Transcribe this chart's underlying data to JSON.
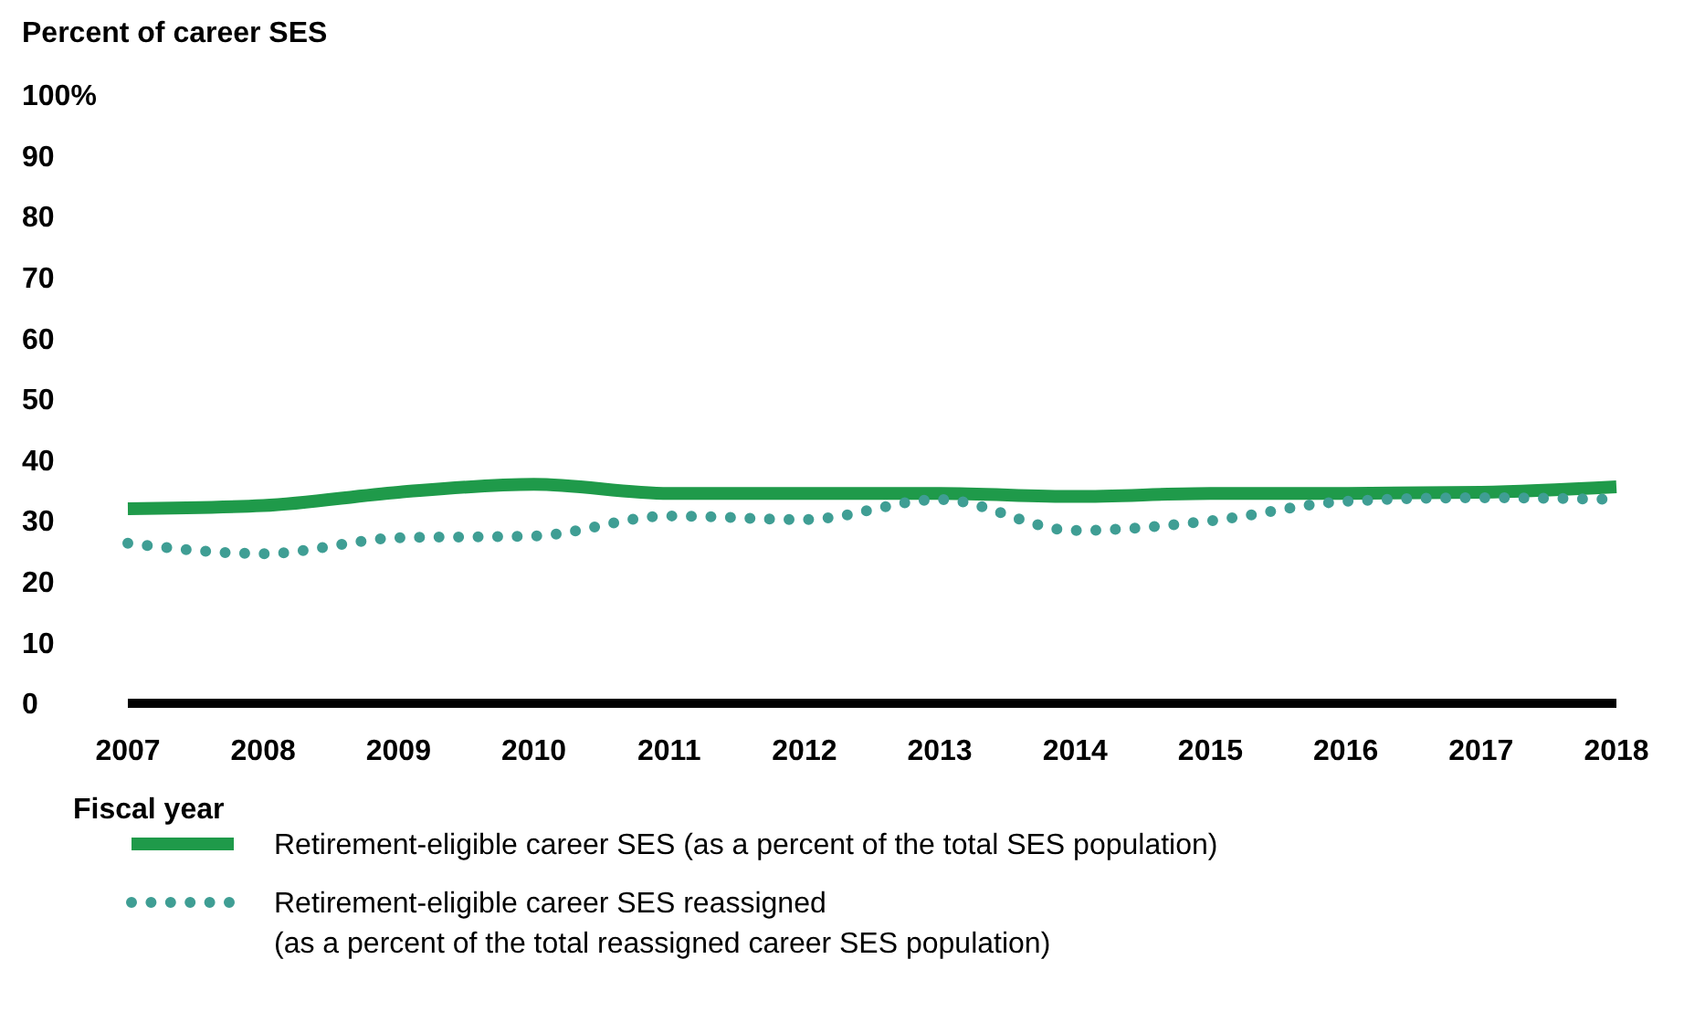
{
  "chart_data": {
    "type": "line",
    "ylabel": "Percent of career SES",
    "xlabel": "Fiscal year",
    "x": [
      2007,
      2008,
      2009,
      2010,
      2011,
      2012,
      2013,
      2014,
      2015,
      2016,
      2017,
      2018
    ],
    "xlim": [
      2007,
      2018
    ],
    "xticks": [
      2007,
      2008,
      2009,
      2010,
      2011,
      2012,
      2013,
      2014,
      2015,
      2016,
      2017,
      2018
    ],
    "ylim": [
      0,
      100
    ],
    "yticks": [
      0,
      10,
      20,
      30,
      40,
      50,
      60,
      70,
      80,
      90,
      {
        "value": 100,
        "label": "100%"
      }
    ],
    "grid": false,
    "legend": "bottom",
    "marker": "none",
    "series": [
      {
        "name": "Retirement-eligible career SES (as a percent of the total SES population)",
        "color": "#1f9a4a",
        "line_style": "solid",
        "values": [
          32,
          32.5,
          34.7,
          36,
          34.5,
          34.5,
          34.5,
          34,
          34.5,
          34.5,
          34.7,
          35.6
        ]
      },
      {
        "name": "Retirement-eligible career SES reassigned (as a percent of the total reassigned career SES population)",
        "color": "#3f9e94",
        "line_style": "dotted",
        "values": [
          26.3,
          24.6,
          27.2,
          27.5,
          30.8,
          30.2,
          33.5,
          28.4,
          30,
          33.2,
          33.8,
          33.5
        ]
      }
    ]
  }
}
